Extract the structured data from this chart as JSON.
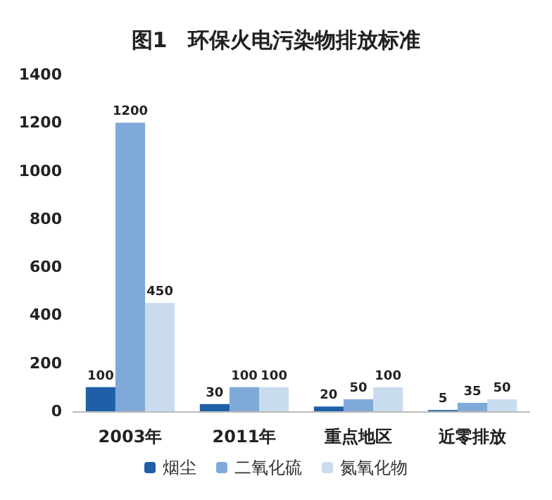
{
  "chart_data": {
    "type": "bar",
    "title": "图1　环保火电污染物排放标准",
    "categories": [
      "2003年",
      "2011年",
      "重点地区",
      "近零排放"
    ],
    "series": [
      {
        "name": "烟尘",
        "color": "#1f5fa8",
        "values": [
          100,
          30,
          20,
          5
        ]
      },
      {
        "name": "二氧化硫",
        "color": "#7fa9d9",
        "values": [
          1200,
          100,
          50,
          35
        ]
      },
      {
        "name": "氮氧化物",
        "color": "#c9dbef",
        "values": [
          450,
          100,
          100,
          50
        ]
      }
    ],
    "ylim": [
      0,
      1400
    ],
    "yticks": [
      0,
      200,
      400,
      600,
      800,
      1000,
      1200,
      1400
    ],
    "grid": false,
    "legend": "bottom",
    "data_labels": true
  }
}
